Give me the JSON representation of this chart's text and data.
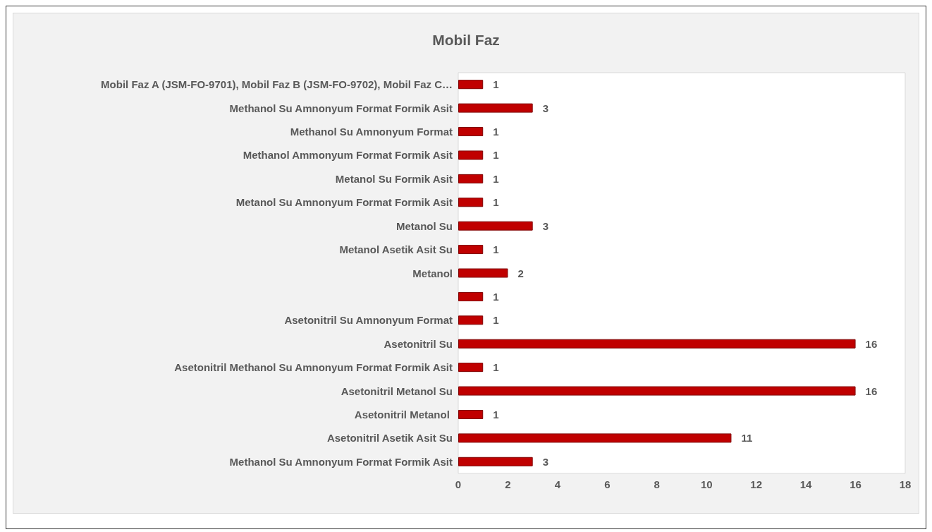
{
  "chart_data": {
    "type": "bar",
    "orientation": "horizontal",
    "title": "Mobil Faz",
    "categories": [
      "Mobil Faz A (JSM-FO-9701), Mobil Faz B (JSM-FO-9702), Mobil Faz C…",
      "Methanol Su Amnonyum Format Formik Asit",
      "Methanol Su Amnonyum Format",
      "Methanol Ammonyum Format Formik Asit",
      "Metanol Su Formik Asit",
      "Metanol Su Amnonyum Format Formik Asit",
      "Metanol Su",
      "Metanol Asetik Asit Su",
      "Metanol",
      null,
      "Asetonitril Su Amnonyum Format",
      "Asetonitril Su",
      "Asetonitril Methanol Su Amnonyum Format Formik Asit",
      "Asetonitril Metanol Su",
      "Asetonitril Metanol ",
      "Asetonitril Asetik Asit Su",
      "Methanol Su Amnonyum Format Formik Asit"
    ],
    "values": [
      1,
      3,
      1,
      1,
      1,
      1,
      3,
      1,
      2,
      1,
      1,
      16,
      1,
      16,
      1,
      11,
      3
    ],
    "color": "#c00000",
    "xlim": [
      0,
      18
    ],
    "xticks": [
      0,
      2,
      4,
      6,
      8,
      10,
      12,
      14,
      16,
      18
    ],
    "data_labels": true
  }
}
